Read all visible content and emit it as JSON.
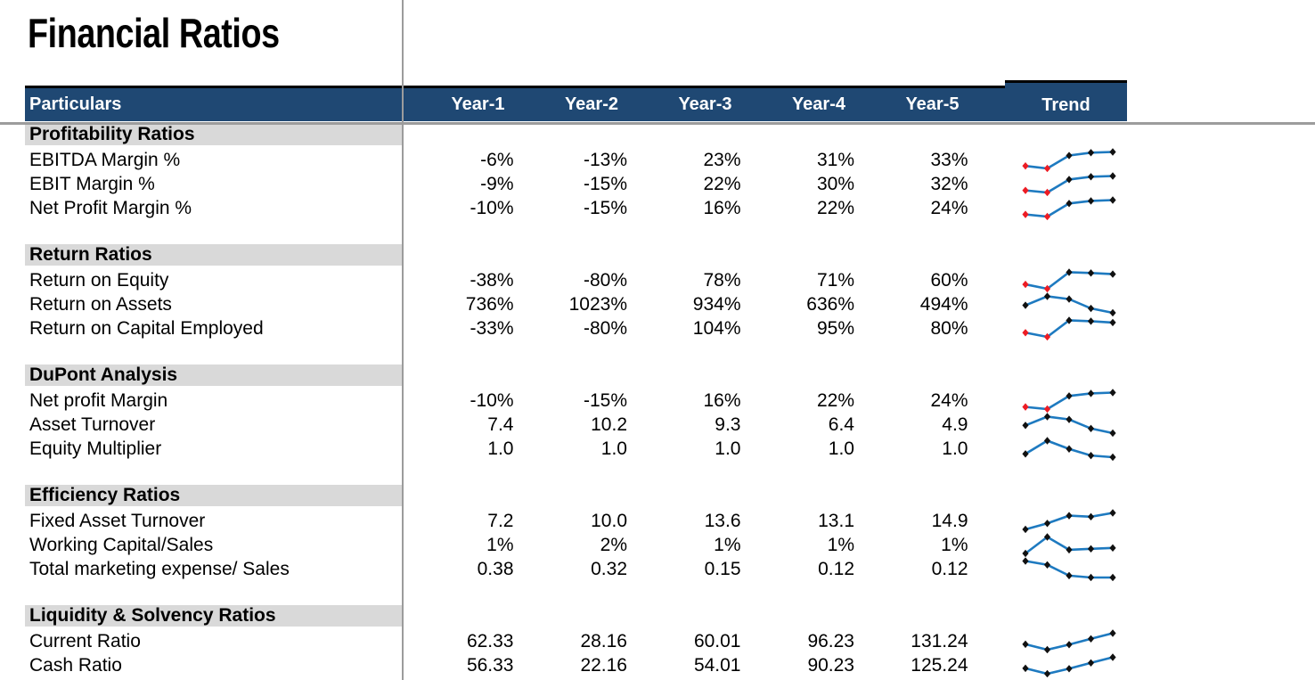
{
  "title": "Financial Ratios",
  "table": {
    "header": {
      "particulars": "Particulars",
      "years": [
        "Year-1",
        "Year-2",
        "Year-3",
        "Year-4",
        "Year-5"
      ],
      "trend": "Trend"
    },
    "sections": [
      {
        "name": "Profitability Ratios",
        "rows": [
          {
            "label": "EBITDA Margin %",
            "values": [
              "-6%",
              "-13%",
              "23%",
              "31%",
              "33%"
            ],
            "spark": [
              -6,
              -13,
              23,
              31,
              33
            ]
          },
          {
            "label": "EBIT Margin %",
            "values": [
              "-9%",
              "-15%",
              "22%",
              "30%",
              "32%"
            ],
            "spark": [
              -9,
              -15,
              22,
              30,
              32
            ]
          },
          {
            "label": "Net Profit Margin %",
            "values": [
              "-10%",
              "-15%",
              "16%",
              "22%",
              "24%"
            ],
            "spark": [
              -10,
              -15,
              16,
              22,
              24
            ]
          }
        ]
      },
      {
        "name": "Return Ratios",
        "rows": [
          {
            "label": "Return on Equity",
            "values": [
              "-38%",
              "-80%",
              "78%",
              "71%",
              "60%"
            ],
            "spark": [
              -38,
              -80,
              78,
              71,
              60
            ]
          },
          {
            "label": "Return on Assets",
            "values": [
              "736%",
              "1023%",
              "934%",
              "636%",
              "494%"
            ],
            "spark": [
              736,
              1023,
              934,
              636,
              494
            ]
          },
          {
            "label": "Return on Capital Employed",
            "values": [
              "-33%",
              "-80%",
              "104%",
              "95%",
              "80%"
            ],
            "spark": [
              -33,
              -80,
              104,
              95,
              80
            ]
          }
        ]
      },
      {
        "name": "DuPont Analysis",
        "rows": [
          {
            "label": "Net profit Margin",
            "values": [
              "-10%",
              "-15%",
              "16%",
              "22%",
              "24%"
            ],
            "spark": [
              -10,
              -15,
              16,
              22,
              24
            ]
          },
          {
            "label": "Asset Turnover",
            "values": [
              "7.4",
              "10.2",
              "9.3",
              "6.4",
              "4.9"
            ],
            "spark": [
              7.4,
              10.2,
              9.3,
              6.4,
              4.9
            ]
          },
          {
            "label": "Equity Multiplier",
            "values": [
              "1.0",
              "1.0",
              "1.0",
              "1.0",
              "1.0"
            ],
            "spark": [
              1.01,
              1.05,
              1.025,
              1.005,
              1.0
            ]
          }
        ]
      },
      {
        "name": "Efficiency Ratios",
        "rows": [
          {
            "label": "Fixed Asset Turnover",
            "values": [
              "7.2",
              "10.0",
              "13.6",
              "13.1",
              "14.9"
            ],
            "spark": [
              7.2,
              10.0,
              13.6,
              13.1,
              14.9
            ]
          },
          {
            "label": "Working Capital/Sales",
            "values": [
              "1%",
              "2%",
              "1%",
              "1%",
              "1%"
            ],
            "spark": [
              1.1,
              2.0,
              1.3,
              1.35,
              1.4
            ]
          },
          {
            "label": "Total marketing expense/ Sales",
            "values": [
              "0.38",
              "0.32",
              "0.15",
              "0.12",
              "0.12"
            ],
            "spark": [
              0.38,
              0.32,
              0.15,
              0.12,
              0.12
            ]
          }
        ]
      },
      {
        "name": "Liquidity & Solvency Ratios",
        "rows": [
          {
            "label": "Current Ratio",
            "values": [
              "62.33",
              "28.16",
              "60.01",
              "96.23",
              "131.24"
            ],
            "spark": [
              62.33,
              28.16,
              60.01,
              96.23,
              131.24
            ]
          },
          {
            "label": "Cash Ratio",
            "values": [
              "56.33",
              "22.16",
              "54.01",
              "90.23",
              "125.24"
            ],
            "spark": [
              56.33,
              22.16,
              54.01,
              90.23,
              125.24
            ]
          }
        ]
      }
    ]
  },
  "colors": {
    "header_bg": "#1F4873",
    "header_text": "#FFFFFF",
    "section_bg": "#D9D9D9",
    "grid_line": "#9C9C9C",
    "spark_line": "#1E7AC0",
    "spark_marker": "#111111",
    "spark_marker_negative": "#ED1C24"
  }
}
